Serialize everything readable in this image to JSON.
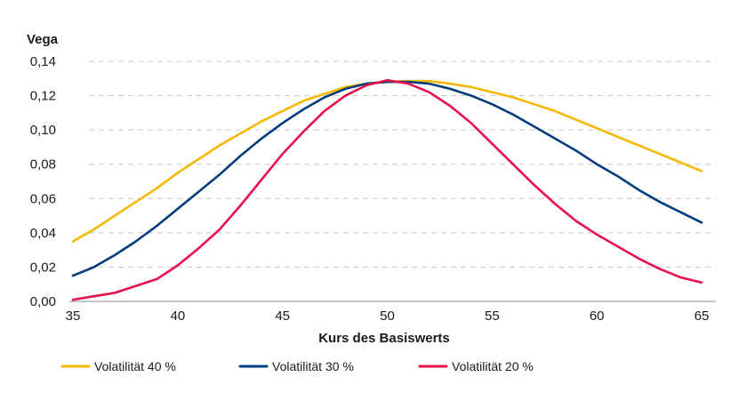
{
  "chart_data": {
    "type": "line",
    "title": "",
    "ylabel": "Vega",
    "xlabel": "Kurs des Basiswerts",
    "xlim": [
      35,
      65
    ],
    "ylim": [
      0,
      0.14
    ],
    "x_ticks": [
      35,
      40,
      45,
      50,
      55,
      60,
      65
    ],
    "y_ticks": [
      "0,00",
      "0,02",
      "0,04",
      "0,06",
      "0,08",
      "0,10",
      "0,12",
      "0,14"
    ],
    "y_tick_values": [
      0,
      0.02,
      0.04,
      0.06,
      0.08,
      0.1,
      0.12,
      0.14
    ],
    "grid": "horizontal dashed",
    "legend_position": "bottom",
    "x": [
      35,
      36,
      37,
      38,
      39,
      40,
      41,
      42,
      43,
      44,
      45,
      46,
      47,
      48,
      49,
      50,
      51,
      52,
      53,
      54,
      55,
      56,
      57,
      58,
      59,
      60,
      61,
      62,
      63,
      64,
      65
    ],
    "series": [
      {
        "name": "Volatilität 40 %",
        "color": "#F5B800",
        "values": [
          0.035,
          0.042,
          0.05,
          0.058,
          0.066,
          0.075,
          0.083,
          0.091,
          0.098,
          0.105,
          0.111,
          0.117,
          0.121,
          0.125,
          0.127,
          0.128,
          0.1285,
          0.1285,
          0.127,
          0.125,
          0.122,
          0.119,
          0.115,
          0.111,
          0.106,
          0.101,
          0.096,
          0.091,
          0.086,
          0.081,
          0.076
        ]
      },
      {
        "name": "Volatilität 30 %",
        "color": "#003C7E",
        "values": [
          0.015,
          0.02,
          0.027,
          0.035,
          0.044,
          0.054,
          0.064,
          0.074,
          0.085,
          0.095,
          0.104,
          0.112,
          0.119,
          0.124,
          0.127,
          0.128,
          0.128,
          0.127,
          0.124,
          0.12,
          0.115,
          0.109,
          0.102,
          0.095,
          0.088,
          0.08,
          0.073,
          0.065,
          0.058,
          0.052,
          0.046
        ]
      },
      {
        "name": "Volatilität 20 %",
        "color": "#E8104A",
        "values": [
          0.001,
          0.003,
          0.005,
          0.009,
          0.013,
          0.021,
          0.031,
          0.042,
          0.056,
          0.071,
          0.086,
          0.099,
          0.111,
          0.12,
          0.126,
          0.129,
          0.127,
          0.122,
          0.114,
          0.104,
          0.092,
          0.08,
          0.068,
          0.057,
          0.047,
          0.039,
          0.032,
          0.025,
          0.019,
          0.014,
          0.011
        ]
      }
    ]
  }
}
